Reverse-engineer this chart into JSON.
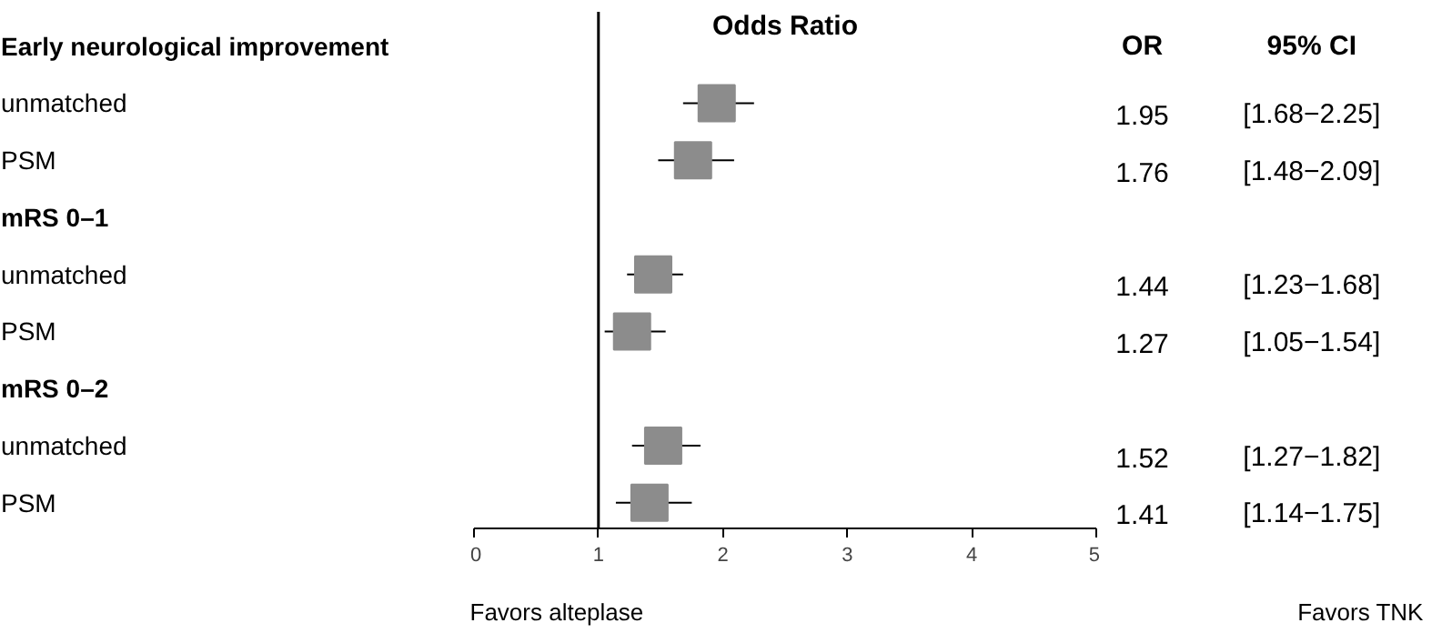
{
  "chart_data": {
    "type": "scatter",
    "orientation": "horizontal",
    "title": "Odds Ratio",
    "categories": [
      "Early neurological improvement",
      "unmatched",
      "PSM",
      "mRS 0–1",
      "unmatched",
      "PSM",
      "mRS 0–2",
      "unmatched",
      "PSM"
    ],
    "values": [
      null,
      1.95,
      1.76,
      null,
      1.44,
      1.27,
      null,
      1.52,
      1.41
    ],
    "errors": [
      null,
      [
        1.68,
        2.25
      ],
      [
        1.48,
        2.09
      ],
      null,
      [
        1.23,
        1.68
      ],
      [
        1.05,
        1.54
      ],
      null,
      [
        1.27,
        1.82
      ],
      [
        1.14,
        1.75
      ]
    ],
    "value_labels": [
      null,
      "1.95",
      "1.76",
      null,
      "1.44",
      "1.27",
      null,
      "1.52",
      "1.41"
    ],
    "color": "#8c8c8c",
    "marker": "square",
    "xlim": [
      0,
      5
    ],
    "xticks": [
      0,
      1,
      2,
      3,
      4,
      5
    ],
    "tick_labels": "x",
    "grid": false,
    "ref_lines": [
      {
        "axis": "x",
        "value": 1,
        "color": "#000000"
      }
    ],
    "annotations": [
      "OR",
      "95% CI",
      "Favors alteplase",
      "Favors TNK",
      "[1.68−2.25]",
      "[1.48−2.09]",
      "[1.23−1.68]",
      "[1.05−1.54]",
      "[1.27−1.82]",
      "[1.14−1.75]"
    ]
  }
}
